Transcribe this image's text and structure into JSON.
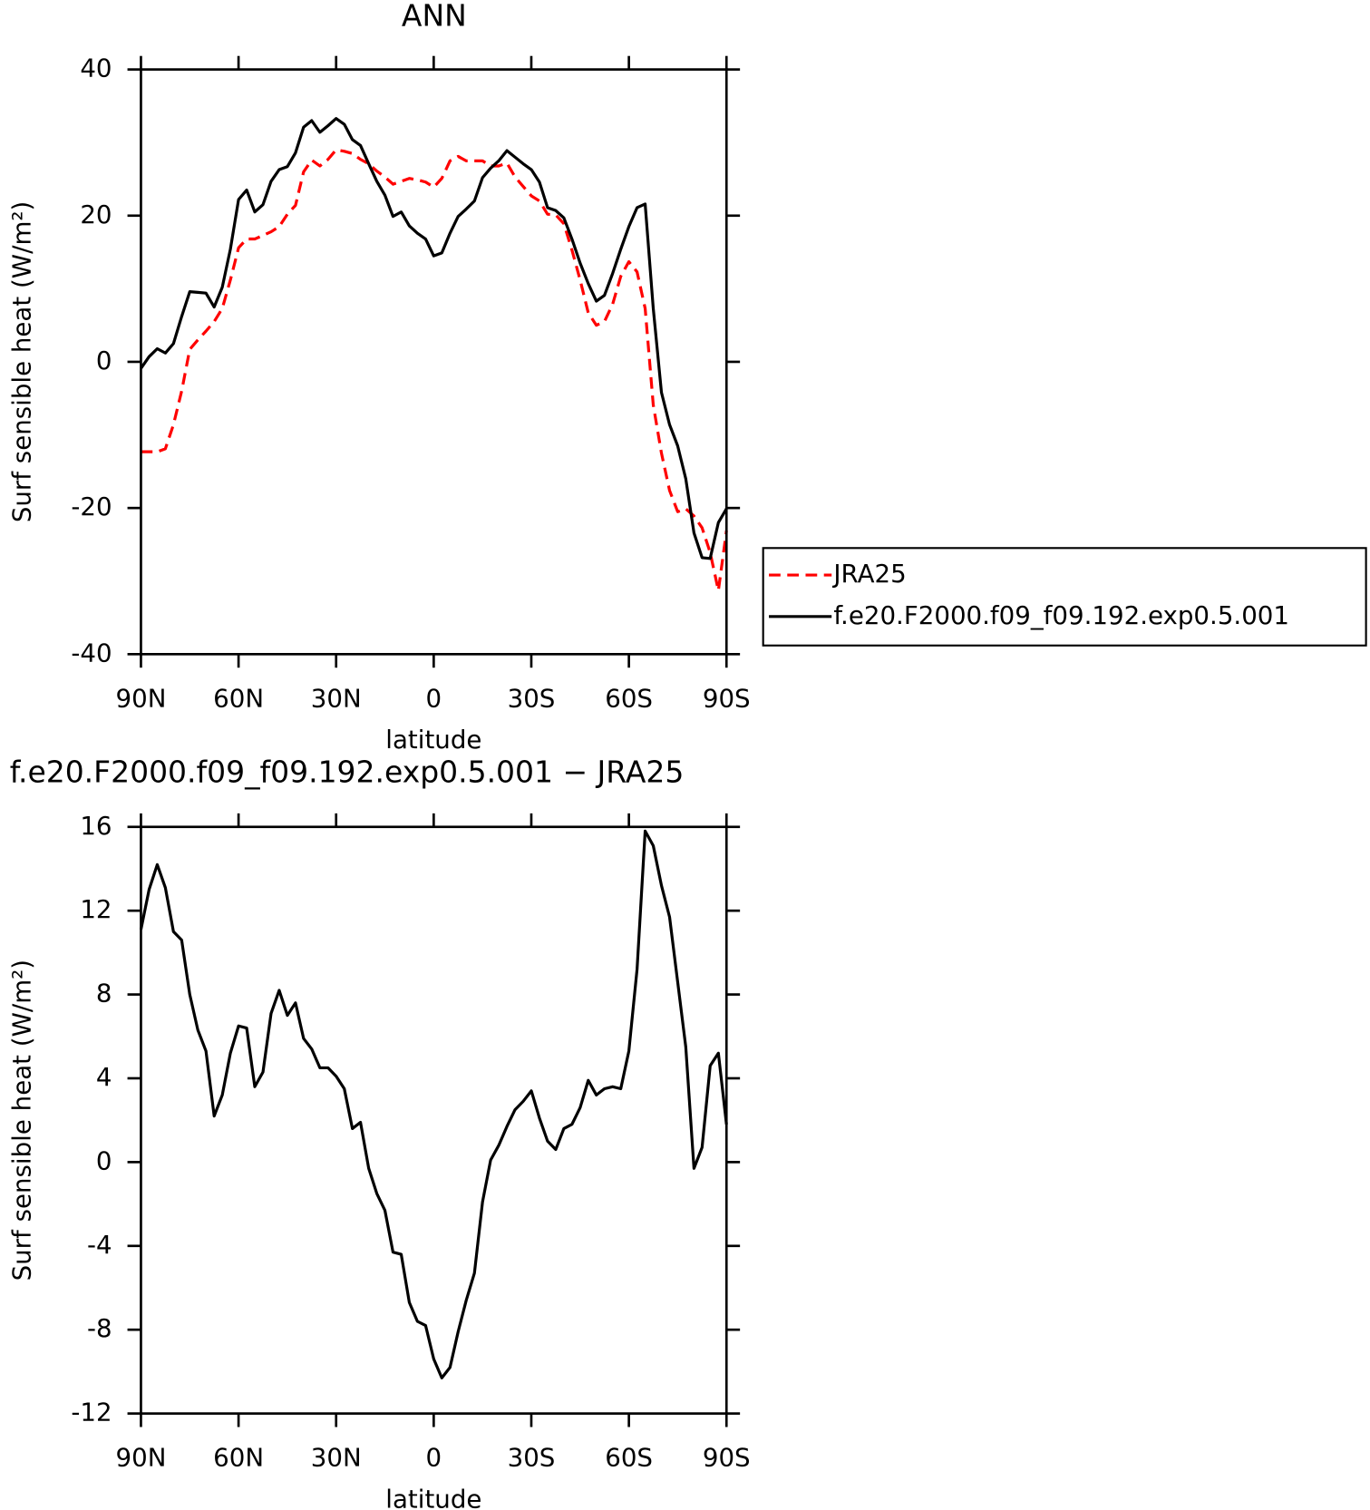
{
  "chart_data": [
    {
      "type": "line",
      "title": "ANN",
      "xlabel": "latitude",
      "ylabel": "Surf sensible heat (W/m²)",
      "x": [
        90,
        87.5,
        85,
        82.5,
        80,
        77.5,
        75,
        72.5,
        70,
        67.5,
        65,
        62.5,
        60,
        57.5,
        55,
        52.5,
        50,
        47.5,
        45,
        42.5,
        40,
        37.5,
        35,
        32.5,
        30,
        27.5,
        25,
        22.5,
        20,
        17.5,
        15,
        12.5,
        10,
        7.5,
        5,
        2.5,
        0,
        -2.5,
        -5,
        -7.5,
        -10,
        -12.5,
        -15,
        -17.5,
        -20,
        -22.5,
        -25,
        -27.5,
        -30,
        -32.5,
        -35,
        -37.5,
        -40,
        -42.5,
        -45,
        -47.5,
        -50,
        -52.5,
        -55,
        -57.5,
        -60,
        -62.5,
        -65,
        -67.5,
        -70,
        -72.5,
        -75,
        -77.5,
        -80,
        -82.5,
        -85,
        -87.5,
        -90
      ],
      "xlim": [
        90,
        -90
      ],
      "xticks": [
        {
          "value": 90,
          "label": "90N"
        },
        {
          "value": 60,
          "label": "60N"
        },
        {
          "value": 30,
          "label": "30N"
        },
        0,
        {
          "value": -30,
          "label": "30S"
        },
        {
          "value": -60,
          "label": "60S"
        },
        {
          "value": -90,
          "label": "90S"
        }
      ],
      "ylim": [
        -40,
        40
      ],
      "yticks": [
        -40,
        -20,
        0,
        20,
        40
      ],
      "legend": "right",
      "series": [
        {
          "name": "JRA25",
          "color": "#ff0000",
          "style": "dashed",
          "values": [
            -12.3,
            -12.3,
            -12.3,
            -11.9,
            -8.6,
            -4.0,
            1.7,
            3.0,
            4.2,
            5.5,
            7.3,
            11.2,
            15.6,
            16.8,
            16.8,
            17.3,
            17.8,
            18.5,
            20.2,
            21.4,
            26.0,
            27.6,
            26.8,
            27.7,
            29.0,
            28.8,
            28.5,
            27.7,
            27.1,
            26.1,
            25.3,
            24.3,
            24.7,
            25.1,
            24.9,
            24.6,
            23.9,
            25.1,
            27.5,
            28.1,
            27.5,
            27.5,
            27.5,
            26.8,
            26.8,
            27.2,
            25.3,
            24.0,
            22.7,
            22.0,
            20.2,
            20.1,
            18.9,
            15.3,
            11.2,
            6.7,
            5.0,
            5.5,
            7.9,
            11.7,
            13.7,
            12.3,
            7.3,
            -5.9,
            -12.5,
            -17.6,
            -20.5,
            -20.1,
            -21.1,
            -22.7,
            -26.1,
            -31.3,
            -23.1
          ]
        },
        {
          "name": "f.e20.F2000.f09_f09.192.exp0.5.001",
          "color": "#000000",
          "style": "solid",
          "values": [
            -0.9,
            0.7,
            1.8,
            1.2,
            2.5,
            6.2,
            9.6,
            9.5,
            9.4,
            7.5,
            10.2,
            15.4,
            22.2,
            23.5,
            20.5,
            21.5,
            24.7,
            26.3,
            26.7,
            28.6,
            32.1,
            33.0,
            31.4,
            32.3,
            33.3,
            32.5,
            30.4,
            29.6,
            27.1,
            24.7,
            22.8,
            19.9,
            20.5,
            18.6,
            17.6,
            16.8,
            14.5,
            14.9,
            17.6,
            19.9,
            20.9,
            22.0,
            25.2,
            26.5,
            27.5,
            28.9,
            28.0,
            27.1,
            26.3,
            24.6,
            21.1,
            20.7,
            19.7,
            16.8,
            13.5,
            10.7,
            8.3,
            9.1,
            12.1,
            15.4,
            18.5,
            21.1,
            21.6,
            7.3,
            -4.2,
            -8.6,
            -11.5,
            -16.0,
            -23.4,
            -26.8,
            -26.9,
            -22.0,
            -20.1
          ]
        }
      ]
    },
    {
      "type": "line",
      "title": "f.e20.F2000.f09_f09.192.exp0.5.001 − JRA25",
      "xlabel": "latitude",
      "ylabel": "Surf sensible heat (W/m²)",
      "x": [
        90,
        87.5,
        85,
        82.5,
        80,
        77.5,
        75,
        72.5,
        70,
        67.5,
        65,
        62.5,
        60,
        57.5,
        55,
        52.5,
        50,
        47.5,
        45,
        42.5,
        40,
        37.5,
        35,
        32.5,
        30,
        27.5,
        25,
        22.5,
        20,
        17.5,
        15,
        12.5,
        10,
        7.5,
        5,
        2.5,
        0,
        -2.5,
        -5,
        -7.5,
        -10,
        -12.5,
        -15,
        -17.5,
        -20,
        -22.5,
        -25,
        -27.5,
        -30,
        -32.5,
        -35,
        -37.5,
        -40,
        -42.5,
        -45,
        -47.5,
        -50,
        -52.5,
        -55,
        -57.5,
        -60,
        -62.5,
        -65,
        -67.5,
        -70,
        -72.5,
        -75,
        -77.5,
        -80,
        -82.5,
        -85,
        -87.5,
        -90
      ],
      "xlim": [
        90,
        -90
      ],
      "xticks": [
        {
          "value": 90,
          "label": "90N"
        },
        {
          "value": 60,
          "label": "60N"
        },
        {
          "value": 30,
          "label": "30N"
        },
        0,
        {
          "value": -30,
          "label": "30S"
        },
        {
          "value": -60,
          "label": "60S"
        },
        {
          "value": -90,
          "label": "90S"
        }
      ],
      "ylim": [
        -12,
        16
      ],
      "yticks": [
        -12,
        -8,
        -4,
        0,
        4,
        8,
        12,
        16
      ],
      "series": [
        {
          "color": "#000000",
          "style": "solid",
          "values": [
            11.1,
            13.0,
            14.2,
            13.1,
            11.0,
            10.6,
            8.0,
            6.3,
            5.3,
            2.2,
            3.2,
            5.2,
            6.5,
            6.4,
            3.6,
            4.3,
            7.1,
            8.2,
            7.0,
            7.6,
            5.9,
            5.4,
            4.5,
            4.5,
            4.1,
            3.5,
            1.6,
            1.9,
            -0.3,
            -1.5,
            -2.3,
            -4.3,
            -4.4,
            -6.7,
            -7.6,
            -7.8,
            -9.4,
            -10.3,
            -9.8,
            -8.1,
            -6.6,
            -5.3,
            -1.9,
            0.1,
            0.8,
            1.7,
            2.5,
            2.9,
            3.4,
            2.1,
            1.0,
            0.6,
            1.6,
            1.8,
            2.6,
            3.9,
            3.2,
            3.5,
            3.6,
            3.5,
            5.3,
            9.2,
            15.8,
            15.1,
            13.2,
            11.7,
            8.6,
            5.5,
            -0.3,
            0.7,
            4.6,
            5.2,
            1.8
          ]
        }
      ]
    }
  ]
}
